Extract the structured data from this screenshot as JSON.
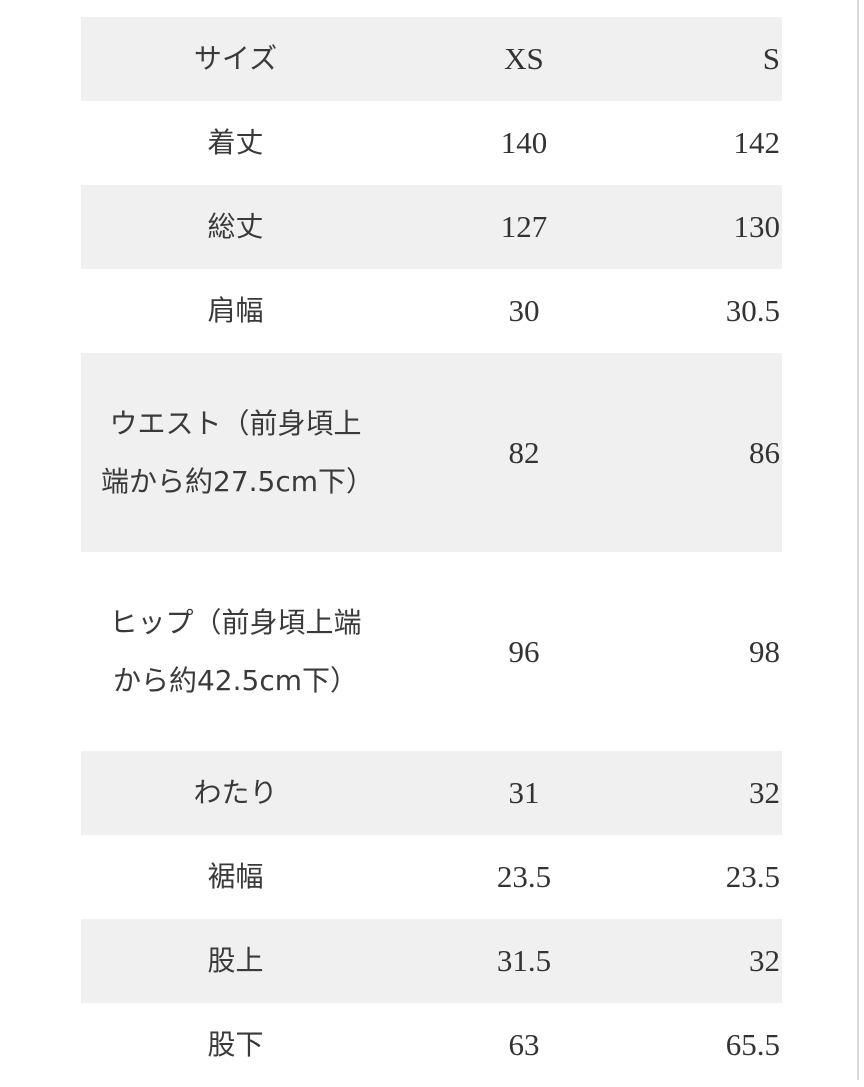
{
  "table": {
    "header": {
      "label": "サイズ",
      "xs": "XS",
      "s": "S"
    },
    "rows": [
      {
        "label": "着丈",
        "xs": "140",
        "s": "142"
      },
      {
        "label": "総丈",
        "xs": "127",
        "s": "130"
      },
      {
        "label": "肩幅",
        "xs": "30",
        "s": "30.5"
      },
      {
        "label": "ウエスト（前身頃上端から約27.5cm下）",
        "xs": "82",
        "s": "86"
      },
      {
        "label": "ヒップ（前身頃上端から約42.5cm下）",
        "xs": "96",
        "s": "98"
      },
      {
        "label": "わたり",
        "xs": "31",
        "s": "32"
      },
      {
        "label": "裾幅",
        "xs": "23.5",
        "s": "23.5"
      },
      {
        "label": "股上",
        "xs": "31.5",
        "s": "32"
      },
      {
        "label": "股下",
        "xs": "63",
        "s": "65.5"
      }
    ]
  }
}
